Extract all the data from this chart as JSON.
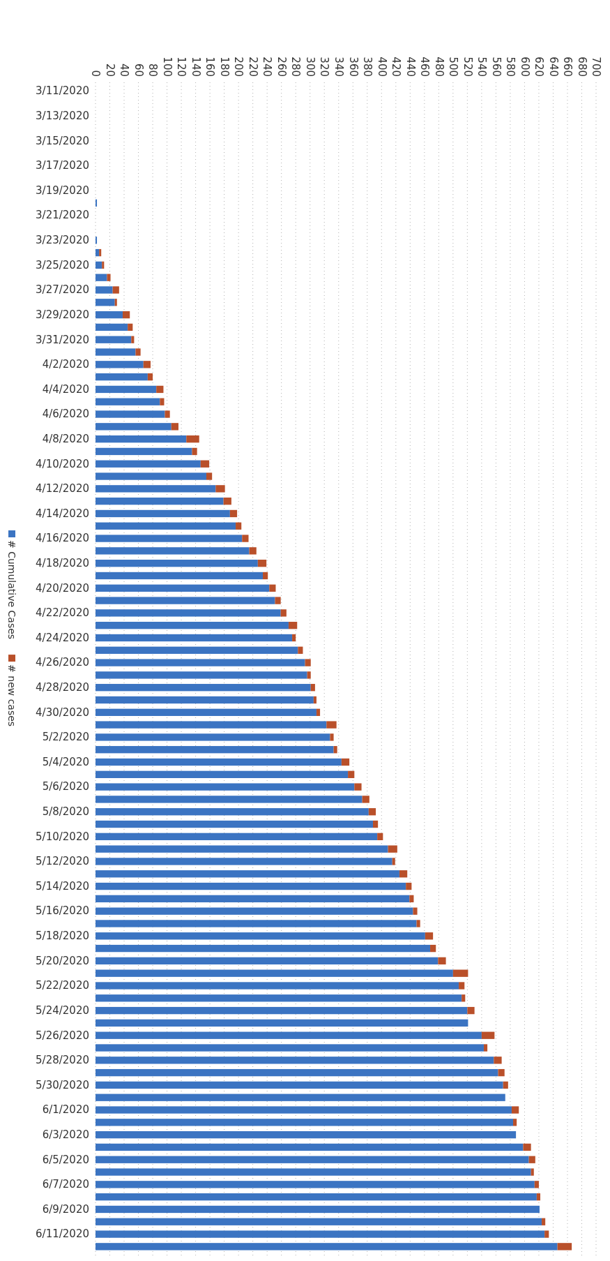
{
  "chart_data": {
    "type": "bar",
    "orientation": "horizontal",
    "stacked": true,
    "grid": "x",
    "legend": "left",
    "categories": [
      "3/11/2020",
      null,
      "3/13/2020",
      null,
      "3/15/2020",
      null,
      "3/17/2020",
      null,
      "3/19/2020",
      null,
      "3/21/2020",
      null,
      "3/23/2020",
      null,
      "3/25/2020",
      null,
      "3/27/2020",
      null,
      "3/29/2020",
      null,
      "3/31/2020",
      null,
      "4/2/2020",
      null,
      "4/4/2020",
      null,
      "4/6/2020",
      null,
      "4/8/2020",
      null,
      "4/10/2020",
      null,
      "4/12/2020",
      null,
      "4/14/2020",
      null,
      "4/16/2020",
      null,
      "4/18/2020",
      null,
      "4/20/2020",
      null,
      "4/22/2020",
      null,
      "4/24/2020",
      null,
      "4/26/2020",
      null,
      "4/28/2020",
      null,
      "4/30/2020",
      null,
      "5/2/2020",
      null,
      "5/4/2020",
      null,
      "5/6/2020",
      null,
      "5/8/2020",
      null,
      "5/10/2020",
      null,
      "5/12/2020",
      null,
      "5/14/2020",
      null,
      "5/16/2020",
      null,
      "5/18/2020",
      null,
      "5/20/2020",
      null,
      "5/22/2020",
      null,
      "5/24/2020",
      null,
      "5/26/2020",
      null,
      "5/28/2020",
      null,
      "5/30/2020",
      null,
      "6/1/2020",
      null,
      "6/3/2020",
      null,
      "6/5/2020",
      null,
      "6/7/2020",
      null,
      "6/9/2020",
      null,
      "6/11/2020",
      null
    ],
    "xlim": [
      0,
      700
    ],
    "xticks": [
      0,
      20,
      40,
      60,
      80,
      100,
      120,
      140,
      160,
      180,
      200,
      220,
      240,
      260,
      280,
      300,
      320,
      340,
      360,
      380,
      400,
      420,
      440,
      460,
      480,
      500,
      520,
      540,
      560,
      580,
      600,
      620,
      640,
      660,
      680,
      700
    ],
    "series": [
      {
        "name": "# Cumulative Cases",
        "color": "#3b74c2",
        "values": [
          0,
          0,
          0,
          0,
          0,
          0,
          0,
          0,
          0,
          2,
          0,
          0,
          2,
          5,
          9,
          16,
          24,
          27,
          38,
          45,
          50,
          56,
          67,
          73,
          85,
          90,
          97,
          106,
          127,
          135,
          147,
          155,
          168,
          179,
          188,
          196,
          205,
          215,
          227,
          234,
          243,
          251,
          259,
          270,
          275,
          283,
          293,
          296,
          301,
          305,
          309,
          323,
          328,
          333,
          344,
          353,
          362,
          373,
          382,
          388,
          394,
          409,
          415,
          425,
          434,
          439,
          444,
          449,
          461,
          468,
          479,
          500,
          508,
          512,
          520,
          521,
          540,
          543,
          557,
          563,
          570,
          573,
          582,
          584,
          588,
          598,
          606,
          609,
          614,
          617,
          621,
          624,
          628,
          646
        ]
      },
      {
        "name": "# new cases",
        "color": "#b9502a",
        "values": [
          0,
          0,
          0,
          0,
          0,
          0,
          0,
          0,
          0,
          0,
          0,
          0,
          0,
          3,
          3,
          5,
          9,
          3,
          10,
          7,
          4,
          7,
          10,
          7,
          10,
          6,
          7,
          10,
          18,
          7,
          12,
          8,
          13,
          11,
          10,
          8,
          9,
          10,
          12,
          7,
          9,
          8,
          8,
          12,
          5,
          7,
          8,
          5,
          6,
          4,
          5,
          14,
          5,
          5,
          11,
          9,
          10,
          10,
          10,
          7,
          8,
          13,
          4,
          11,
          8,
          6,
          6,
          5,
          11,
          8,
          11,
          21,
          8,
          5,
          10,
          0,
          18,
          5,
          11,
          9,
          7,
          0,
          10,
          5,
          0,
          11,
          9,
          4,
          6,
          5,
          0,
          5,
          6,
          20
        ]
      }
    ]
  }
}
